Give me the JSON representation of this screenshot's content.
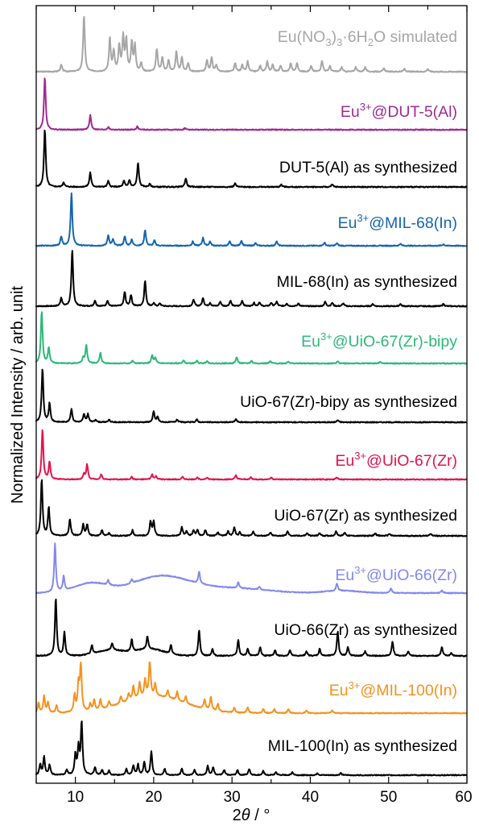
{
  "chart_data": {
    "type": "line",
    "xlabel": "2θ / °",
    "ylabel": "Normalized Intensity / arb. unit",
    "xlim": [
      5,
      60
    ],
    "xticks": [
      "10",
      "20",
      "30",
      "40",
      "50",
      "60"
    ],
    "grid": false,
    "legend": "inline labels at right of each trace",
    "series": [
      {
        "label": "Eu(NO3)3·6H2O simulated",
        "color": "#a6a6a6",
        "peaks": [
          [
            8.2,
            0.12
          ],
          [
            11.1,
            1.0
          ],
          [
            14.4,
            0.58
          ],
          [
            14.9,
            0.35
          ],
          [
            15.6,
            0.45
          ],
          [
            16.1,
            0.6
          ],
          [
            16.5,
            0.55
          ],
          [
            17.2,
            0.5
          ],
          [
            17.6,
            0.45
          ],
          [
            18.4,
            0.15
          ],
          [
            20.4,
            0.4
          ],
          [
            21.1,
            0.25
          ],
          [
            21.9,
            0.2
          ],
          [
            22.9,
            0.35
          ],
          [
            23.6,
            0.25
          ],
          [
            24.4,
            0.15
          ],
          [
            26.8,
            0.2
          ],
          [
            27.4,
            0.25
          ],
          [
            28.0,
            0.12
          ],
          [
            30.4,
            0.15
          ],
          [
            31.3,
            0.12
          ],
          [
            32.0,
            0.18
          ],
          [
            33.6,
            0.1
          ],
          [
            34.5,
            0.18
          ],
          [
            35.2,
            0.12
          ],
          [
            36.2,
            0.1
          ],
          [
            37.5,
            0.15
          ],
          [
            38.3,
            0.15
          ],
          [
            40.1,
            0.1
          ],
          [
            41.5,
            0.2
          ],
          [
            42.5,
            0.1
          ],
          [
            44.0,
            0.08
          ],
          [
            45.8,
            0.08
          ],
          [
            47.0,
            0.08
          ],
          [
            49.4,
            0.06
          ],
          [
            52.0,
            0.05
          ],
          [
            55.0,
            0.05
          ]
        ]
      },
      {
        "label": "Eu³⁺@DUT-5(Al)",
        "color": "#a02b93",
        "peaks": [
          [
            6.1,
            1.0
          ],
          [
            11.9,
            0.28
          ],
          [
            14.2,
            0.05
          ],
          [
            17.9,
            0.06
          ],
          [
            24.0,
            0.03
          ]
        ]
      },
      {
        "label": "DUT-5(Al) as synthesized",
        "color": "#000000",
        "peaks": [
          [
            6.1,
            1.0
          ],
          [
            8.5,
            0.08
          ],
          [
            11.9,
            0.25
          ],
          [
            14.2,
            0.1
          ],
          [
            16.2,
            0.1
          ],
          [
            16.9,
            0.12
          ],
          [
            18.0,
            0.42
          ],
          [
            19.5,
            0.05
          ],
          [
            24.1,
            0.15
          ],
          [
            30.4,
            0.06
          ],
          [
            36.3,
            0.04
          ],
          [
            42.8,
            0.04
          ]
        ]
      },
      {
        "label": "Eu³⁺@MIL-68(In)",
        "color": "#1565b0",
        "peaks": [
          [
            8.2,
            0.18
          ],
          [
            9.5,
            1.0
          ],
          [
            14.2,
            0.2
          ],
          [
            14.8,
            0.12
          ],
          [
            16.3,
            0.18
          ],
          [
            17.2,
            0.12
          ],
          [
            18.9,
            0.3
          ],
          [
            20.1,
            0.1
          ],
          [
            25.0,
            0.08
          ],
          [
            26.3,
            0.15
          ],
          [
            27.2,
            0.08
          ],
          [
            29.7,
            0.08
          ],
          [
            31.2,
            0.1
          ],
          [
            33.0,
            0.05
          ],
          [
            35.7,
            0.08
          ],
          [
            41.8,
            0.06
          ],
          [
            43.4,
            0.05
          ],
          [
            51.5,
            0.04
          ],
          [
            57.0,
            0.03
          ]
        ]
      },
      {
        "label": "MIL-68(In) as synthesized",
        "color": "#000000",
        "peaks": [
          [
            8.2,
            0.15
          ],
          [
            9.6,
            1.0
          ],
          [
            12.5,
            0.1
          ],
          [
            14.1,
            0.1
          ],
          [
            16.3,
            0.25
          ],
          [
            17.1,
            0.2
          ],
          [
            18.9,
            0.45
          ],
          [
            20.0,
            0.05
          ],
          [
            20.8,
            0.05
          ],
          [
            25.1,
            0.12
          ],
          [
            26.3,
            0.15
          ],
          [
            27.2,
            0.06
          ],
          [
            28.5,
            0.08
          ],
          [
            29.8,
            0.1
          ],
          [
            31.3,
            0.1
          ],
          [
            32.8,
            0.06
          ],
          [
            33.5,
            0.07
          ],
          [
            35.0,
            0.06
          ],
          [
            35.7,
            0.08
          ],
          [
            37.0,
            0.05
          ],
          [
            38.5,
            0.05
          ],
          [
            41.9,
            0.08
          ],
          [
            42.8,
            0.06
          ],
          [
            44.2,
            0.05
          ],
          [
            48.0,
            0.04
          ],
          [
            51.5,
            0.04
          ],
          [
            57.0,
            0.04
          ]
        ]
      },
      {
        "label": "Eu³⁺@UiO-67(Zr)-bipy",
        "color": "#2db87a",
        "peaks": [
          [
            5.7,
            1.0
          ],
          [
            6.6,
            0.3
          ],
          [
            11.4,
            0.35
          ],
          [
            11.0,
            0.1
          ],
          [
            13.2,
            0.2
          ],
          [
            17.3,
            0.05
          ],
          [
            19.8,
            0.15
          ],
          [
            20.2,
            0.1
          ],
          [
            23.8,
            0.06
          ],
          [
            25.5,
            0.05
          ],
          [
            26.8,
            0.05
          ],
          [
            30.6,
            0.12
          ],
          [
            32.5,
            0.05
          ],
          [
            34.9,
            0.04
          ],
          [
            37.2,
            0.04
          ],
          [
            43.5,
            0.04
          ],
          [
            48.9,
            0.03
          ]
        ]
      },
      {
        "label": "UiO-67(Zr)-bipy as synthesized",
        "color": "#000000",
        "peaks": [
          [
            5.8,
            1.0
          ],
          [
            6.7,
            0.35
          ],
          [
            9.5,
            0.25
          ],
          [
            11.1,
            0.15
          ],
          [
            11.6,
            0.15
          ],
          [
            12.6,
            0.05
          ],
          [
            14.3,
            0.05
          ],
          [
            20.0,
            0.2
          ],
          [
            20.5,
            0.1
          ],
          [
            23.0,
            0.05
          ],
          [
            25.5,
            0.05
          ],
          [
            30.5,
            0.06
          ],
          [
            43.5,
            0.04
          ]
        ]
      },
      {
        "label": "Eu³⁺@UiO-67(Zr)",
        "color": "#e0144c",
        "peaks": [
          [
            5.8,
            1.0
          ],
          [
            6.7,
            0.35
          ],
          [
            11.5,
            0.3
          ],
          [
            11.1,
            0.1
          ],
          [
            13.3,
            0.1
          ],
          [
            17.2,
            0.05
          ],
          [
            19.8,
            0.1
          ],
          [
            20.3,
            0.06
          ],
          [
            23.7,
            0.05
          ],
          [
            25.6,
            0.04
          ],
          [
            26.8,
            0.04
          ],
          [
            30.5,
            0.08
          ],
          [
            32.4,
            0.04
          ],
          [
            35.0,
            0.04
          ],
          [
            43.4,
            0.04
          ]
        ]
      },
      {
        "label": "UiO-67(Zr) as synthesized",
        "color": "#000000",
        "peaks": [
          [
            5.7,
            1.0
          ],
          [
            6.6,
            0.5
          ],
          [
            9.3,
            0.3
          ],
          [
            11.0,
            0.2
          ],
          [
            11.5,
            0.2
          ],
          [
            13.4,
            0.1
          ],
          [
            14.3,
            0.05
          ],
          [
            17.3,
            0.1
          ],
          [
            19.6,
            0.25
          ],
          [
            20.0,
            0.25
          ],
          [
            23.6,
            0.15
          ],
          [
            24.2,
            0.08
          ],
          [
            25.1,
            0.1
          ],
          [
            25.6,
            0.1
          ],
          [
            26.6,
            0.1
          ],
          [
            28.2,
            0.06
          ],
          [
            29.5,
            0.08
          ],
          [
            30.3,
            0.15
          ],
          [
            31.0,
            0.06
          ],
          [
            32.7,
            0.08
          ],
          [
            34.9,
            0.06
          ],
          [
            37.1,
            0.08
          ],
          [
            39.6,
            0.05
          ],
          [
            41.2,
            0.05
          ],
          [
            43.3,
            0.08
          ],
          [
            44.4,
            0.06
          ],
          [
            48.3,
            0.05
          ],
          [
            50.1,
            0.04
          ],
          [
            55.4,
            0.04
          ]
        ]
      },
      {
        "label": "Eu³⁺@UiO-66(Zr)",
        "color": "#8289ef",
        "peaks": [
          [
            7.4,
            1.0
          ],
          [
            8.5,
            0.3
          ],
          [
            14.2,
            0.1
          ],
          [
            17.2,
            0.08
          ],
          [
            25.8,
            0.25
          ],
          [
            30.8,
            0.12
          ],
          [
            33.5,
            0.06
          ],
          [
            43.4,
            0.15
          ],
          [
            50.3,
            0.1
          ],
          [
            56.8,
            0.06
          ]
        ],
        "humps": [
          [
            12.0,
            3.0,
            0.2
          ],
          [
            21.0,
            5.0,
            0.35
          ],
          [
            30.0,
            6.0,
            0.1
          ],
          [
            44.0,
            3.0,
            0.05
          ]
        ]
      },
      {
        "label": "UiO-66(Zr) as synthesized",
        "color": "#000000",
        "peaks": [
          [
            7.5,
            1.0
          ],
          [
            8.6,
            0.4
          ],
          [
            12.1,
            0.15
          ],
          [
            14.7,
            0.12
          ],
          [
            17.2,
            0.2
          ],
          [
            19.2,
            0.22
          ],
          [
            22.2,
            0.15
          ],
          [
            25.8,
            0.45
          ],
          [
            27.5,
            0.12
          ],
          [
            30.8,
            0.28
          ],
          [
            32.0,
            0.12
          ],
          [
            33.6,
            0.15
          ],
          [
            35.5,
            0.1
          ],
          [
            37.4,
            0.1
          ],
          [
            39.5,
            0.08
          ],
          [
            41.2,
            0.12
          ],
          [
            43.5,
            0.42
          ],
          [
            44.8,
            0.15
          ],
          [
            47.0,
            0.08
          ],
          [
            50.5,
            0.25
          ],
          [
            52.5,
            0.08
          ],
          [
            56.8,
            0.15
          ],
          [
            58.0,
            0.05
          ]
        ],
        "humps": [
          [
            14.5,
            2.5,
            0.1
          ],
          [
            19.5,
            2.5,
            0.12
          ]
        ]
      },
      {
        "label": "Eu³⁺@MIL-100(In)",
        "color": "#f5921e",
        "peaks": [
          [
            5.3,
            0.2
          ],
          [
            6.0,
            0.35
          ],
          [
            6.5,
            0.22
          ],
          [
            7.6,
            0.15
          ],
          [
            9.9,
            0.35
          ],
          [
            10.4,
            0.55
          ],
          [
            10.7,
            1.0
          ],
          [
            11.9,
            0.15
          ],
          [
            12.4,
            0.22
          ],
          [
            13.2,
            0.2
          ],
          [
            14.3,
            0.12
          ],
          [
            15.8,
            0.15
          ],
          [
            16.8,
            0.15
          ],
          [
            17.4,
            0.28
          ],
          [
            18.2,
            0.3
          ],
          [
            18.9,
            0.35
          ],
          [
            19.5,
            0.75
          ],
          [
            20.2,
            0.25
          ],
          [
            21.8,
            0.15
          ],
          [
            23.0,
            0.18
          ],
          [
            24.1,
            0.15
          ],
          [
            26.5,
            0.2
          ],
          [
            27.3,
            0.28
          ],
          [
            28.2,
            0.15
          ],
          [
            30.3,
            0.1
          ],
          [
            32.0,
            0.12
          ],
          [
            34.0,
            0.08
          ],
          [
            35.4,
            0.08
          ],
          [
            37.2,
            0.08
          ],
          [
            39.5,
            0.05
          ],
          [
            42.8,
            0.05
          ]
        ],
        "humps": [
          [
            20.0,
            5.5,
            0.35
          ]
        ]
      },
      {
        "label": "MIL-100(In) as synthesized",
        "color": "#000000",
        "peaks": [
          [
            5.5,
            0.2
          ],
          [
            6.0,
            0.35
          ],
          [
            6.7,
            0.2
          ],
          [
            8.9,
            0.1
          ],
          [
            10.0,
            0.38
          ],
          [
            10.4,
            0.5
          ],
          [
            10.8,
            1.0
          ],
          [
            12.5,
            0.15
          ],
          [
            13.4,
            0.1
          ],
          [
            14.3,
            0.08
          ],
          [
            16.5,
            0.12
          ],
          [
            17.4,
            0.18
          ],
          [
            18.0,
            0.2
          ],
          [
            18.8,
            0.25
          ],
          [
            19.7,
            0.45
          ],
          [
            21.4,
            0.12
          ],
          [
            23.6,
            0.12
          ],
          [
            25.2,
            0.1
          ],
          [
            26.9,
            0.18
          ],
          [
            27.6,
            0.15
          ],
          [
            29.0,
            0.1
          ],
          [
            30.7,
            0.1
          ],
          [
            32.2,
            0.12
          ],
          [
            34.0,
            0.08
          ],
          [
            35.6,
            0.06
          ],
          [
            37.7,
            0.06
          ],
          [
            40.9,
            0.04
          ],
          [
            43.9,
            0.04
          ]
        ]
      }
    ]
  },
  "series_labels": [
    {
      "main": "Eu(NO",
      "sub1": "3",
      "mid1": ")",
      "sub2": "3",
      "mid2": "·6H",
      "sub3": "2",
      "end": "O simulated"
    },
    {
      "main": "Eu",
      "sup": "3+",
      "end": "@DUT-5(Al)"
    },
    {
      "main": "DUT-5(Al) as synthesized"
    },
    {
      "main": "Eu",
      "sup": "3+",
      "end": "@MIL-68(In)"
    },
    {
      "main": "MIL-68(In) as synthesized"
    },
    {
      "main": "Eu",
      "sup": "3+",
      "end": "@UiO-67(Zr)-bipy"
    },
    {
      "main": "UiO-67(Zr)-bipy as synthesized"
    },
    {
      "main": "Eu",
      "sup": "3+",
      "end": "@UiO-67(Zr)"
    },
    {
      "main": "UiO-67(Zr) as synthesized"
    },
    {
      "main": "Eu",
      "sup": "3+",
      "end": "@UiO-66(Zr)"
    },
    {
      "main": "UiO-66(Zr) as synthesized"
    },
    {
      "main": "Eu",
      "sup": "3+",
      "end": "@MIL-100(In)"
    },
    {
      "main": "MIL-100(In) as synthesized"
    }
  ],
  "axes": {
    "xlabel_prefix": "2",
    "xlabel_theta": "θ",
    "xlabel_suffix": " / °",
    "ylabel": "Normalized Intensity / arb. unit"
  }
}
